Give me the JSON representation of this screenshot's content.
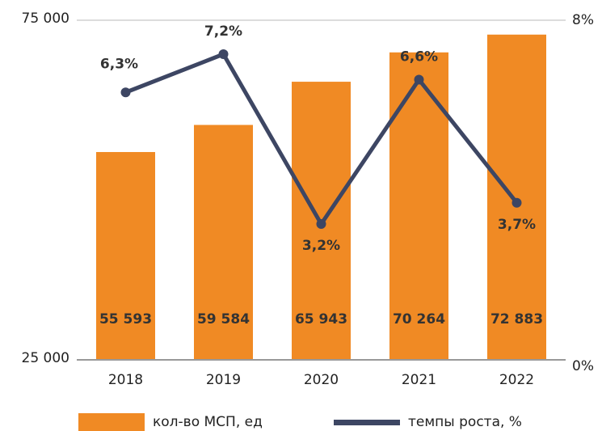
{
  "chart_data": {
    "type": "bar_line",
    "categories": [
      "2018",
      "2019",
      "2020",
      "2021",
      "2022"
    ],
    "series": [
      {
        "name": "кол-во МСП, ед",
        "type": "bar",
        "color": "#f08a24",
        "values": [
          55593,
          59584,
          65943,
          70264,
          72883
        ],
        "value_labels": [
          "55 593",
          "59 584",
          "65 943",
          "70 264",
          "72 883"
        ]
      },
      {
        "name": "темпы роста, %",
        "type": "line",
        "axis": "y2",
        "color": "#3d4663",
        "values": [
          6.3,
          7.2,
          3.2,
          6.6,
          3.7
        ],
        "value_labels": [
          "6,3%",
          "7,2%",
          "3,2%",
          "6,6%",
          "3,7%"
        ]
      }
    ],
    "ylim": [
      25000,
      75000
    ],
    "yticks": [
      {
        "value": 25000,
        "label": "25 000"
      },
      {
        "value": 75000,
        "label": "75 000"
      }
    ],
    "y2lim": [
      0,
      8
    ],
    "y2ticks": [
      {
        "value": 0,
        "label": "0%"
      },
      {
        "value": 8,
        "label": "8%"
      }
    ],
    "legend": "bottom"
  }
}
